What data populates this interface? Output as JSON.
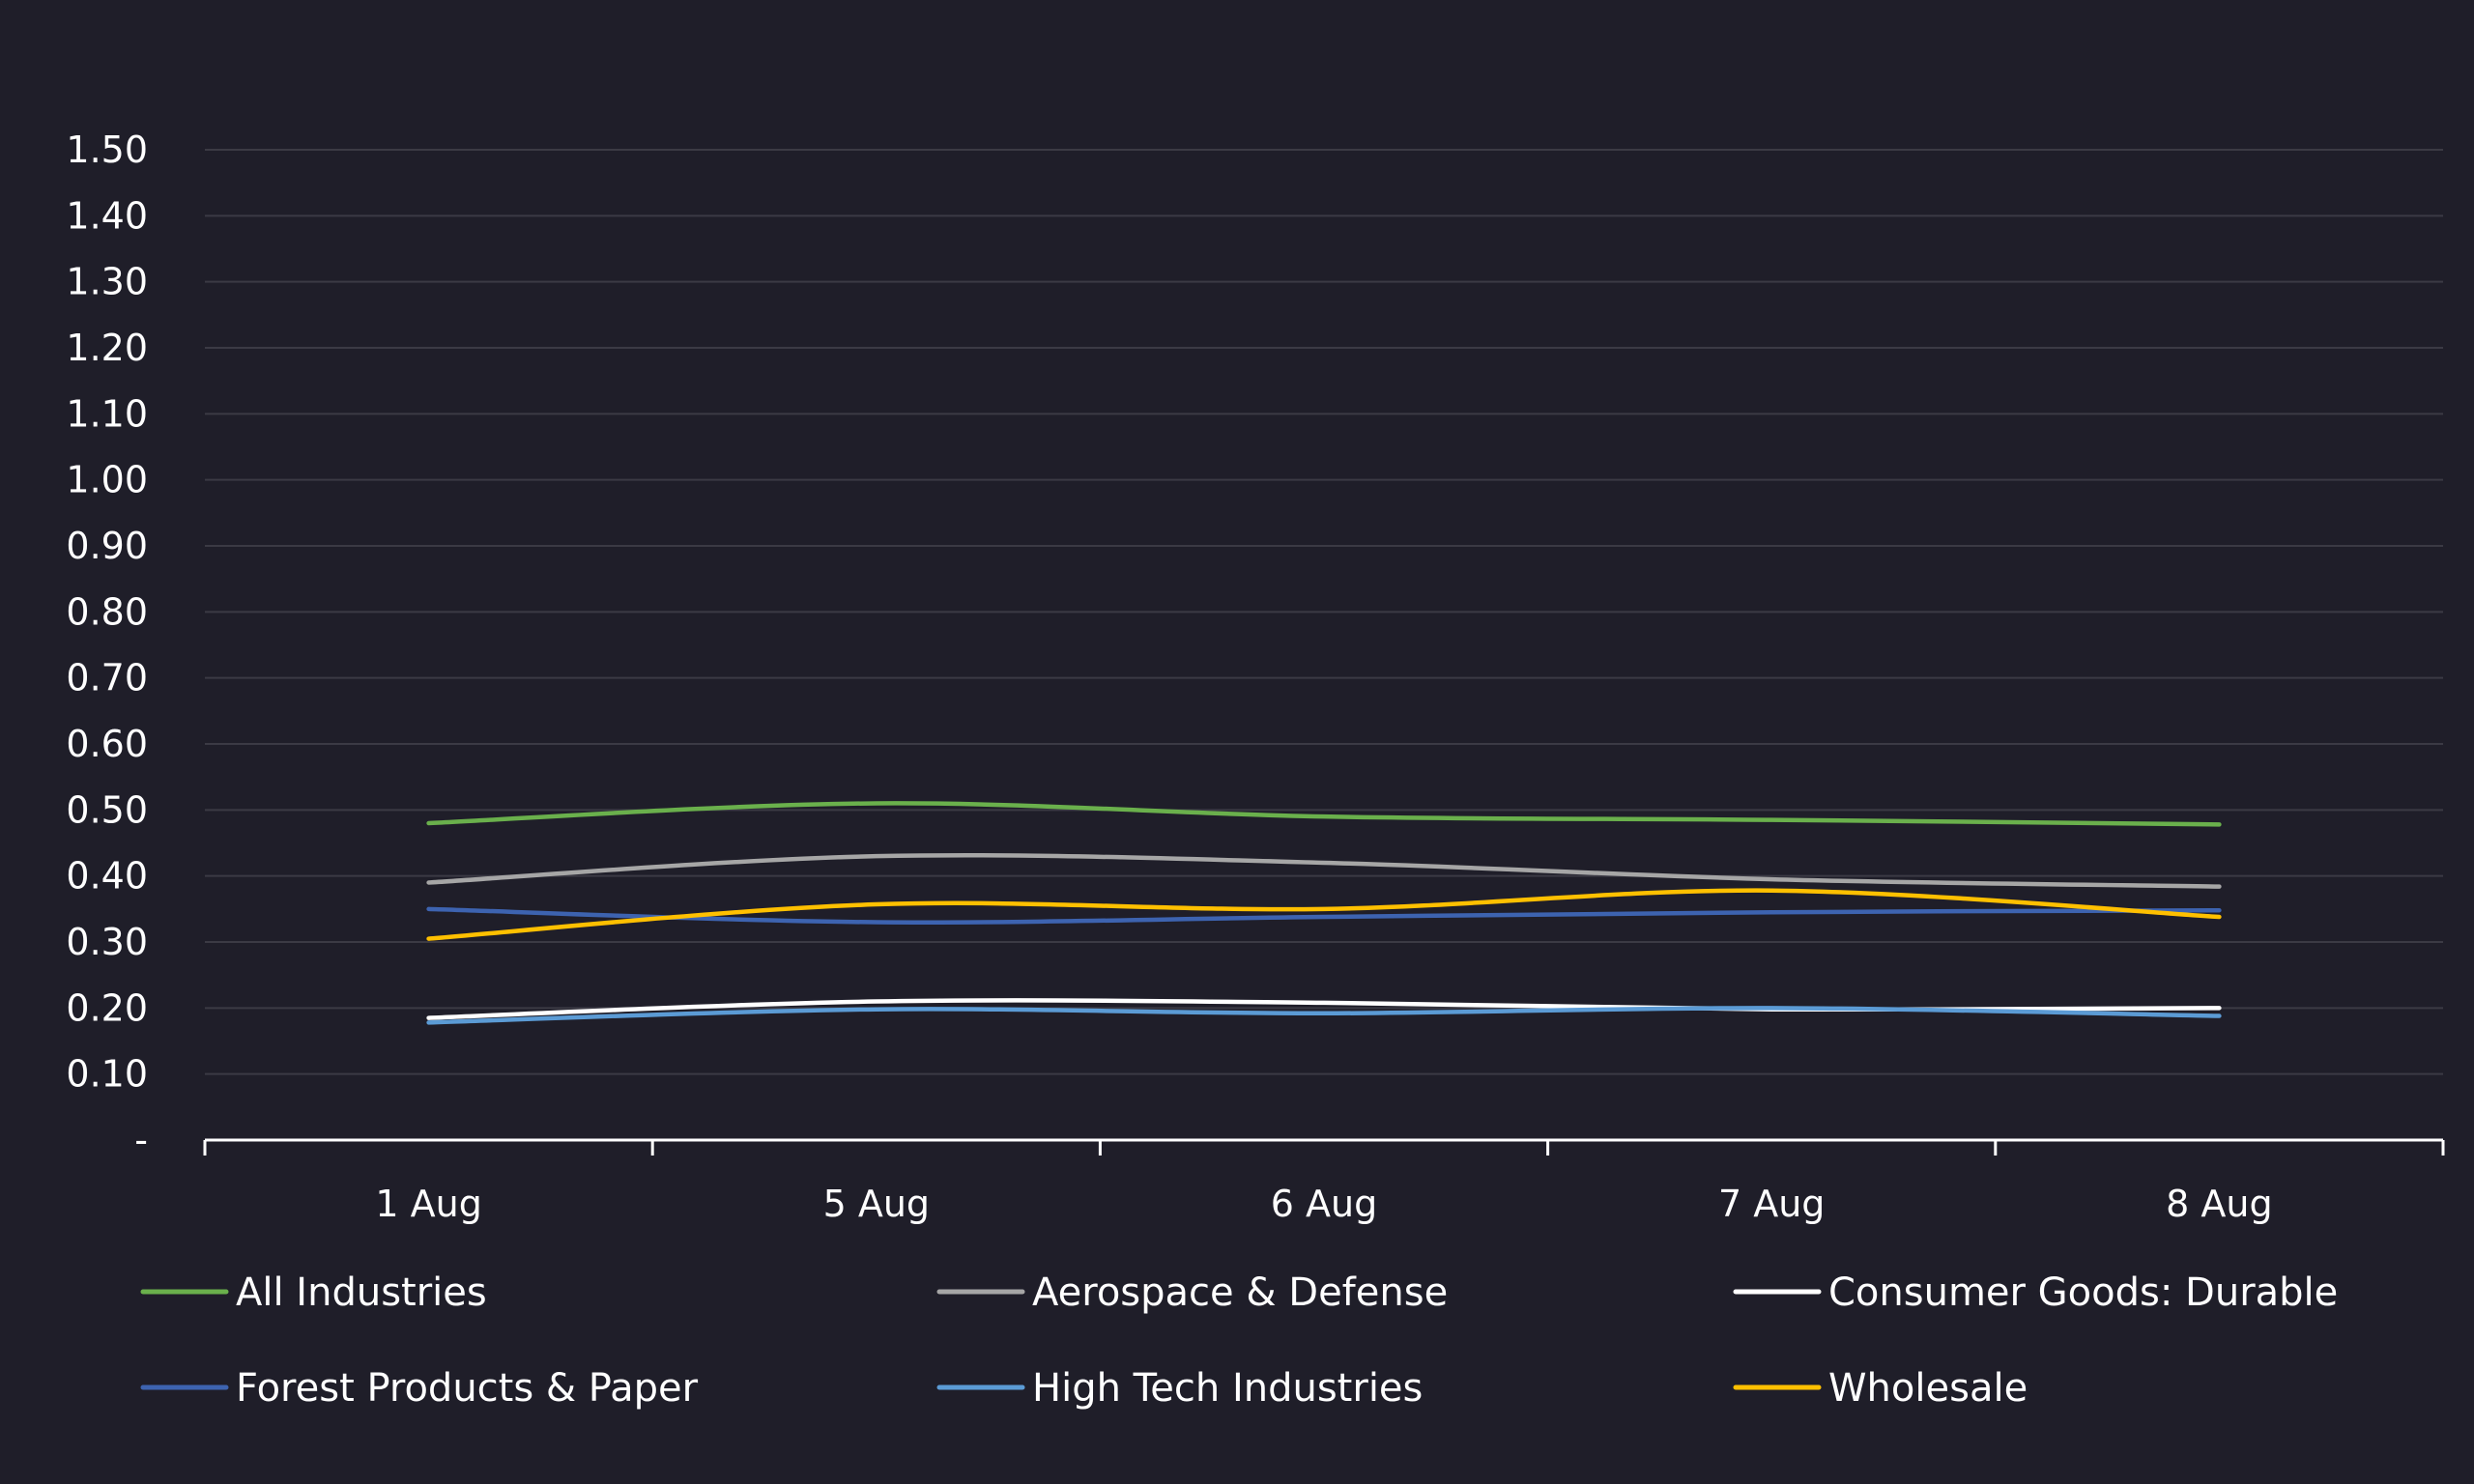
{
  "chart_data": {
    "type": "line",
    "categories": [
      "1 Aug",
      "5 Aug",
      "6 Aug",
      "7 Aug",
      "8 Aug"
    ],
    "ylim": [
      0,
      1.5
    ],
    "y_ticks": [
      {
        "value": 0,
        "label": "-"
      },
      {
        "value": 0.1,
        "label": "0.10"
      },
      {
        "value": 0.2,
        "label": "0.20"
      },
      {
        "value": 0.3,
        "label": "0.30"
      },
      {
        "value": 0.4,
        "label": "0.40"
      },
      {
        "value": 0.5,
        "label": "0.50"
      },
      {
        "value": 0.6,
        "label": "0.60"
      },
      {
        "value": 0.7,
        "label": "0.70"
      },
      {
        "value": 0.8,
        "label": "0.80"
      },
      {
        "value": 0.9,
        "label": "0.90"
      },
      {
        "value": 1.0,
        "label": "1.00"
      },
      {
        "value": 1.1,
        "label": "1.10"
      },
      {
        "value": 1.2,
        "label": "1.20"
      },
      {
        "value": 1.3,
        "label": "1.30"
      },
      {
        "value": 1.4,
        "label": "1.40"
      },
      {
        "value": 1.5,
        "label": "1.50"
      }
    ],
    "grid": true,
    "legend_position": "bottom",
    "series": [
      {
        "name": "All Industries",
        "color": "#6ab04c",
        "values": [
          0.48,
          0.51,
          0.49,
          0.485,
          0.478
        ]
      },
      {
        "name": "Aerospace & Defense",
        "color": "#a6a6a6",
        "values": [
          0.39,
          0.43,
          0.42,
          0.395,
          0.384
        ]
      },
      {
        "name": "Consumer Goods: Durable",
        "color": "#ffffff",
        "values": [
          0.185,
          0.21,
          0.208,
          0.198,
          0.2
        ]
      },
      {
        "name": "Forest Products & Paper",
        "color": "#3d63b0",
        "values": [
          0.35,
          0.33,
          0.338,
          0.345,
          0.348
        ]
      },
      {
        "name": "High Tech Industries",
        "color": "#5b9bd5",
        "values": [
          0.178,
          0.198,
          0.192,
          0.2,
          0.188
        ]
      },
      {
        "name": "Wholesale",
        "color": "#ffc000",
        "values": [
          0.305,
          0.357,
          0.35,
          0.378,
          0.338
        ]
      }
    ]
  }
}
